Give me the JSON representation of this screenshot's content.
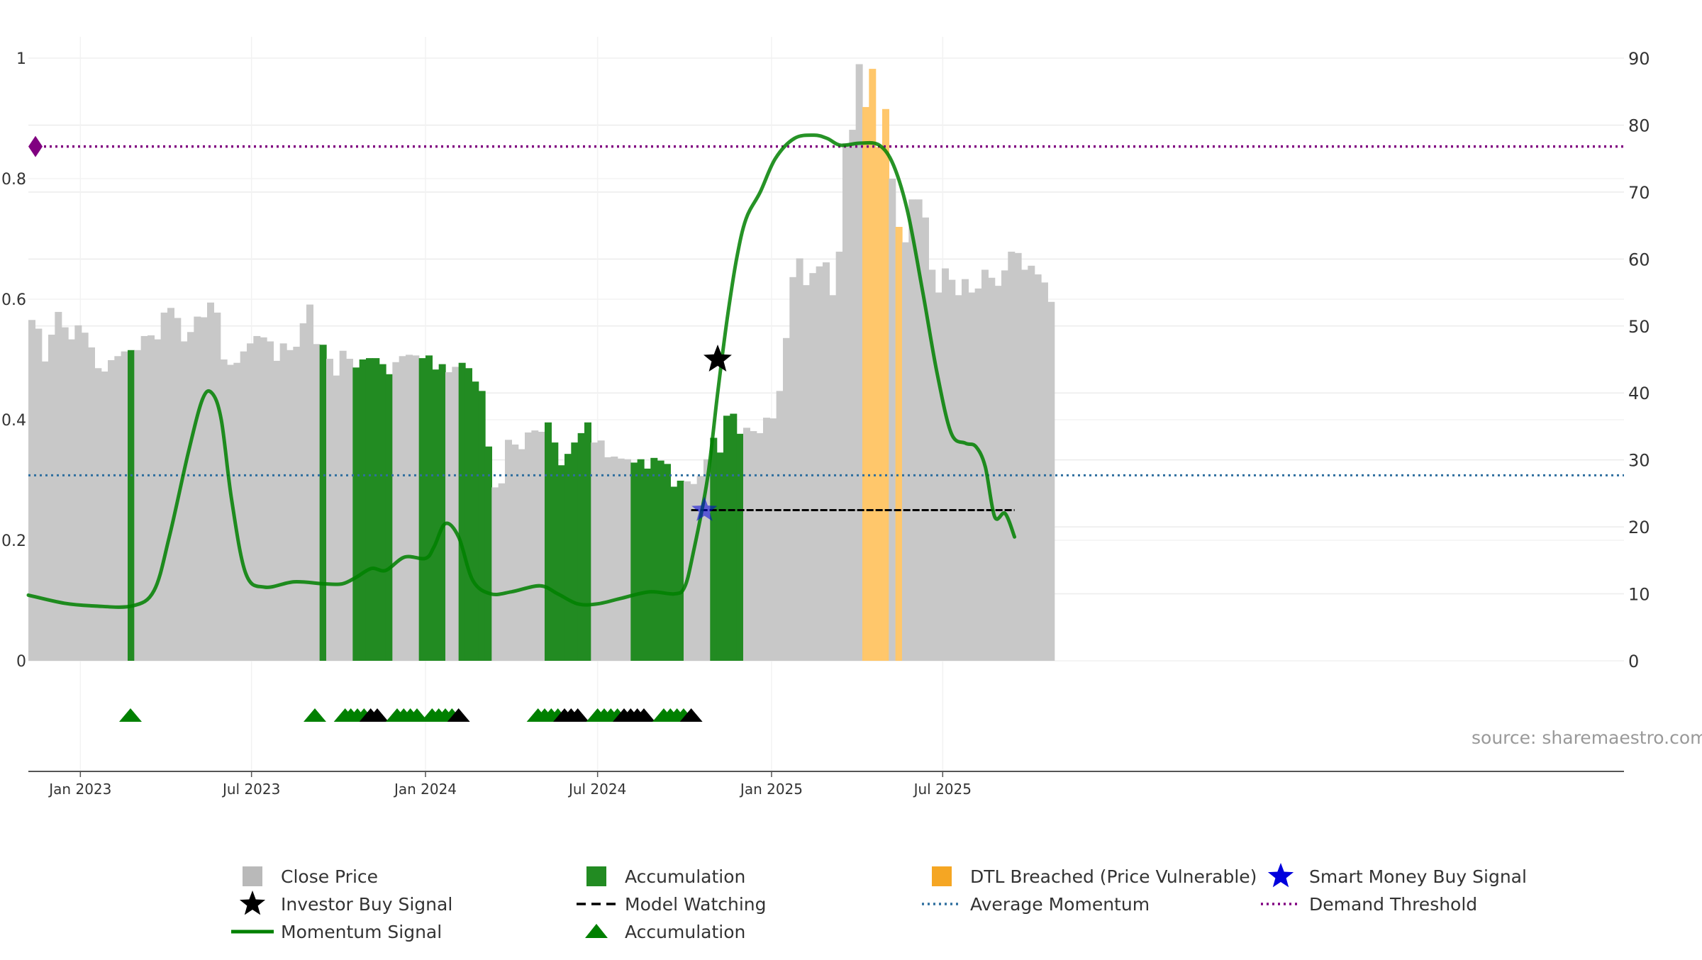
{
  "chart_data": {
    "type": "bar",
    "source_label": "source: sharemaestro.com",
    "x_ticks": [
      {
        "label": "Jan 2023",
        "date": "2023-01-01"
      },
      {
        "label": "Jul 2023",
        "date": "2023-07-01"
      },
      {
        "label": "Jan 2024",
        "date": "2024-01-01"
      },
      {
        "label": "Jul 2024",
        "date": "2024-07-01"
      },
      {
        "label": "Jan 2025",
        "date": "2025-01-01"
      },
      {
        "label": "Jul 2025",
        "date": "2025-07-01"
      }
    ],
    "y_left": {
      "min": 0,
      "max": 1,
      "ticks": [
        "0",
        "0.2",
        "0.4",
        "0.6",
        "0.8",
        "1"
      ]
    },
    "y_right": {
      "min": 0,
      "max": 90,
      "ticks": [
        "0",
        "10",
        "20",
        "30",
        "40",
        "50",
        "60",
        "70",
        "80",
        "90"
      ]
    },
    "series_colors": {
      "close": "#c8c8c8",
      "accumulation": "#228b22",
      "dtl": "#ffc76b",
      "momentum": "#008000",
      "average_momentum": "#2f6f9f",
      "demand_threshold": "#800080",
      "model_watching": "#000000",
      "smart_money": "#0000dd"
    },
    "close_price": {
      "start_date": "2022-11-07",
      "interval_days": 7,
      "values": [
        50.9,
        49.6,
        44.7,
        48.7,
        52.1,
        49.8,
        48.0,
        50.1,
        49.0,
        46.8,
        43.7,
        43.2,
        44.9,
        45.5,
        46.2,
        46.4,
        46.4,
        48.5,
        48.6,
        48.0,
        52.0,
        52.7,
        51.2,
        47.7,
        49.1,
        51.4,
        51.3,
        53.5,
        52.0,
        45.0,
        44.2,
        44.5,
        46.2,
        47.4,
        48.5,
        48.3,
        47.7,
        44.8,
        47.4,
        46.4,
        46.9,
        50.4,
        53.2,
        47.3,
        47.2,
        45.1,
        42.6,
        46.3,
        45.1,
        43.8,
        45.0,
        45.2,
        45.2,
        44.3,
        42.8,
        44.6,
        45.5,
        45.7,
        45.6,
        45.2,
        45.6,
        43.5,
        44.3,
        43.1,
        43.9,
        44.5,
        43.7,
        41.7,
        40.3,
        32.0,
        25.9,
        26.5,
        33.0,
        32.3,
        31.6,
        34.1,
        34.4,
        34.2,
        35.6,
        32.6,
        29.2,
        30.9,
        32.6,
        34.0,
        35.6,
        32.6,
        32.9,
        30.4,
        30.5,
        30.2,
        30.1,
        29.6,
        30.1,
        28.7,
        30.3,
        29.9,
        29.4,
        26.0,
        26.9,
        26.8,
        26.4,
        27.6,
        30.1,
        33.3,
        31.1,
        36.6,
        36.9,
        33.9,
        34.8,
        34.3,
        34.0,
        36.3,
        36.2,
        40.3,
        48.2,
        57.3,
        60.1,
        56.1,
        57.9,
        58.9,
        59.5,
        54.6,
        61.1,
        77.3,
        79.3,
        89.1,
        82.7,
        88.4,
        76.7,
        82.4,
        72.0,
        64.8,
        62.5,
        68.9,
        68.9,
        66.2,
        58.4,
        55.0,
        58.6,
        56.9,
        54.6,
        57.0,
        55.0,
        55.6,
        58.4,
        57.2,
        56.0,
        58.3,
        61.1,
        60.9,
        58.4,
        59.0,
        57.7,
        56.5,
        53.6
      ],
      "accumulation_flags": [
        0,
        0,
        0,
        0,
        0,
        0,
        0,
        0,
        0,
        0,
        0,
        0,
        0,
        0,
        0,
        1,
        0,
        0,
        0,
        0,
        0,
        0,
        0,
        0,
        0,
        0,
        0,
        0,
        0,
        0,
        0,
        0,
        0,
        0,
        0,
        0,
        0,
        0,
        0,
        0,
        0,
        0,
        0,
        0,
        1,
        0,
        0,
        0,
        0,
        1,
        1,
        1,
        1,
        1,
        1,
        0,
        0,
        0,
        0,
        1,
        1,
        1,
        1,
        0,
        0,
        1,
        1,
        1,
        1,
        1,
        0,
        0,
        0,
        0,
        0,
        0,
        0,
        0,
        1,
        1,
        1,
        1,
        1,
        1,
        1,
        0,
        0,
        0,
        0,
        0,
        0,
        1,
        1,
        1,
        1,
        1,
        1,
        1,
        1,
        0,
        0,
        0,
        0,
        1,
        1,
        1,
        1,
        1,
        0,
        0,
        0,
        0,
        0,
        0,
        0,
        0,
        0,
        0,
        0,
        0,
        0,
        0,
        0,
        0,
        0,
        0,
        0,
        0,
        0,
        0,
        0,
        0,
        0,
        0,
        0,
        0,
        0,
        0,
        0,
        0,
        0,
        0,
        0,
        0,
        0,
        0,
        0,
        0,
        0,
        0,
        0,
        0,
        0,
        0,
        0
      ],
      "dtl_flags": [
        0,
        0,
        0,
        0,
        0,
        0,
        0,
        0,
        0,
        0,
        0,
        0,
        0,
        0,
        0,
        0,
        0,
        0,
        0,
        0,
        0,
        0,
        0,
        0,
        0,
        0,
        0,
        0,
        0,
        0,
        0,
        0,
        0,
        0,
        0,
        0,
        0,
        0,
        0,
        0,
        0,
        0,
        0,
        0,
        0,
        0,
        0,
        0,
        0,
        0,
        0,
        0,
        0,
        0,
        0,
        0,
        0,
        0,
        0,
        0,
        0,
        0,
        0,
        0,
        0,
        0,
        0,
        0,
        0,
        0,
        0,
        0,
        0,
        0,
        0,
        0,
        0,
        0,
        0,
        0,
        0,
        0,
        0,
        0,
        0,
        0,
        0,
        0,
        0,
        0,
        0,
        0,
        0,
        0,
        0,
        0,
        0,
        0,
        0,
        0,
        0,
        0,
        0,
        0,
        0,
        0,
        0,
        0,
        0,
        0,
        0,
        0,
        0,
        0,
        0,
        0,
        0,
        0,
        0,
        0,
        0,
        0,
        0,
        0,
        0,
        0,
        1,
        1,
        1,
        1,
        0,
        1,
        0,
        0,
        0,
        0,
        0,
        0,
        0,
        0,
        0,
        0,
        0,
        0,
        0,
        0,
        0,
        0,
        0,
        0,
        0,
        0,
        0,
        0,
        0
      ]
    },
    "momentum": {
      "dates": [
        "2022-11-07",
        "2022-12-15",
        "2023-01-15",
        "2023-02-25",
        "2023-03-20",
        "2023-04-05",
        "2023-04-25",
        "2023-05-10",
        "2023-05-20",
        "2023-05-30",
        "2023-06-10",
        "2023-06-25",
        "2023-07-15",
        "2023-08-15",
        "2023-09-15",
        "2023-10-05",
        "2023-10-20",
        "2023-11-05",
        "2023-11-20",
        "2023-12-10",
        "2024-01-01",
        "2024-01-10",
        "2024-01-22",
        "2024-02-05",
        "2024-02-20",
        "2024-03-10",
        "2024-04-01",
        "2024-05-01",
        "2024-05-20",
        "2024-06-10",
        "2024-07-01",
        "2024-07-25",
        "2024-08-25",
        "2024-09-20",
        "2024-10-01",
        "2024-10-10",
        "2024-10-25",
        "2024-11-05",
        "2024-11-15",
        "2024-11-25",
        "2024-12-05",
        "2024-12-20",
        "2025-01-05",
        "2025-01-25",
        "2025-02-15",
        "2025-03-01",
        "2025-03-15",
        "2025-04-05",
        "2025-04-25",
        "2025-05-10",
        "2025-05-25",
        "2025-06-10",
        "2025-06-25",
        "2025-07-10",
        "2025-07-25",
        "2025-08-05",
        "2025-08-15",
        "2025-08-25",
        "2025-09-05",
        "2025-09-15"
      ],
      "values": [
        9.8,
        8.6,
        8.2,
        8.2,
        10.5,
        18.5,
        31,
        39,
        40,
        36,
        24,
        13,
        11,
        11.8,
        11.5,
        11.5,
        12.5,
        13.8,
        13.5,
        15.5,
        15.3,
        17,
        20.5,
        18.5,
        12,
        10,
        10.3,
        11.2,
        10,
        8.5,
        8.5,
        9.3,
        10.3,
        10,
        11,
        16,
        27,
        40,
        51,
        60,
        66,
        70,
        75,
        78,
        78.5,
        78,
        77,
        77.3,
        77,
        74,
        67,
        55,
        43,
        34,
        32.5,
        32,
        29,
        21.5,
        22,
        18.5
      ]
    },
    "average_momentum": 27.7,
    "demand_threshold": 76.8,
    "model_watching": {
      "start_date": "2024-10-08",
      "end_date": "2025-09-15",
      "value": 22.5
    },
    "investor_buy_signal": {
      "date": "2024-11-05",
      "value": 45
    },
    "smart_money_buy_signal": {
      "date": "2024-10-22",
      "value": 22.5
    },
    "demand_marker_value": 76.8,
    "triangles": [
      {
        "date": "2023-02-23",
        "color": "green"
      },
      {
        "date": "2023-09-06",
        "color": "green"
      },
      {
        "date": "2023-10-08",
        "color": "green"
      },
      {
        "date": "2023-10-14",
        "color": "green"
      },
      {
        "date": "2023-10-21",
        "color": "green"
      },
      {
        "date": "2023-10-28",
        "color": "green"
      },
      {
        "date": "2023-11-04",
        "color": "black"
      },
      {
        "date": "2023-11-11",
        "color": "black"
      },
      {
        "date": "2023-12-02",
        "color": "green"
      },
      {
        "date": "2023-12-09",
        "color": "green"
      },
      {
        "date": "2023-12-16",
        "color": "green"
      },
      {
        "date": "2023-12-23",
        "color": "green"
      },
      {
        "date": "2024-01-08",
        "color": "green"
      },
      {
        "date": "2024-01-15",
        "color": "green"
      },
      {
        "date": "2024-01-22",
        "color": "green"
      },
      {
        "date": "2024-01-29",
        "color": "green"
      },
      {
        "date": "2024-02-05",
        "color": "black"
      },
      {
        "date": "2024-04-29",
        "color": "green"
      },
      {
        "date": "2024-05-06",
        "color": "green"
      },
      {
        "date": "2024-05-13",
        "color": "green"
      },
      {
        "date": "2024-05-20",
        "color": "green"
      },
      {
        "date": "2024-05-27",
        "color": "black"
      },
      {
        "date": "2024-06-03",
        "color": "black"
      },
      {
        "date": "2024-06-10",
        "color": "black"
      },
      {
        "date": "2024-07-01",
        "color": "green"
      },
      {
        "date": "2024-07-08",
        "color": "green"
      },
      {
        "date": "2024-07-15",
        "color": "green"
      },
      {
        "date": "2024-07-22",
        "color": "green"
      },
      {
        "date": "2024-07-29",
        "color": "black"
      },
      {
        "date": "2024-08-05",
        "color": "black"
      },
      {
        "date": "2024-08-12",
        "color": "black"
      },
      {
        "date": "2024-08-19",
        "color": "black"
      },
      {
        "date": "2024-09-09",
        "color": "green"
      },
      {
        "date": "2024-09-16",
        "color": "green"
      },
      {
        "date": "2024-09-23",
        "color": "green"
      },
      {
        "date": "2024-09-30",
        "color": "green"
      },
      {
        "date": "2024-10-08",
        "color": "black"
      }
    ],
    "legend": [
      {
        "label": "Close Price",
        "symbol": "square",
        "color": "#b9b9b9"
      },
      {
        "label": "Accumulation",
        "symbol": "square",
        "color": "#228b22"
      },
      {
        "label": "DTL Breached (Price Vulnerable)",
        "symbol": "square",
        "color": "#f5a623"
      },
      {
        "label": "Smart Money Buy Signal",
        "symbol": "star",
        "color": "#0000dd"
      },
      {
        "label": "Investor Buy Signal",
        "symbol": "star",
        "color": "#000000"
      },
      {
        "label": "Model Watching",
        "symbol": "dash",
        "color": "#000000"
      },
      {
        "label": "Average Momentum",
        "symbol": "dot",
        "color": "#2f6f9f"
      },
      {
        "label": "Demand Threshold",
        "symbol": "dot",
        "color": "#800080"
      },
      {
        "label": "Momentum Signal",
        "symbol": "line",
        "color": "#008000"
      },
      {
        "label": "Accumulation",
        "symbol": "triangle",
        "color": "#008000"
      }
    ]
  }
}
